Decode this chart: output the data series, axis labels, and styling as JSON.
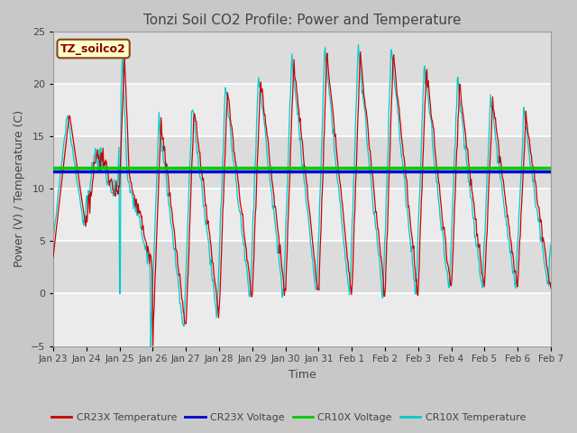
{
  "title": "Tonzi Soil CO2 Profile: Power and Temperature",
  "xlabel": "Time",
  "ylabel": "Power (V) / Temperature (C)",
  "ylim": [
    -5,
    25
  ],
  "yticks": [
    -5,
    0,
    5,
    10,
    15,
    20,
    25
  ],
  "xtick_labels": [
    "Jan 23",
    "Jan 24",
    "Jan 25",
    "Jan 26",
    "Jan 27",
    "Jan 28",
    "Jan 29",
    "Jan 30",
    "Jan 31",
    "Feb 1",
    "Feb 2",
    "Feb 3",
    "Feb 4",
    "Feb 5",
    "Feb 6",
    "Feb 7"
  ],
  "cr23x_voltage_level": 11.7,
  "cr10x_voltage_level": 12.0,
  "annotation_text": "TZ_soilco2",
  "annotation_bg": "#FFFFCC",
  "annotation_fg": "#8B0000",
  "colors": {
    "cr23x_temp": "#CC0000",
    "cr23x_voltage": "#0000CC",
    "cr10x_voltage": "#00CC00",
    "cr10x_temp": "#00CCCC"
  },
  "fig_bg": "#C8C8C8",
  "plot_bg": "#E0E0E0",
  "band_light": "#EBEBEB",
  "band_dark": "#D8D8D8",
  "title_color": "#555555"
}
